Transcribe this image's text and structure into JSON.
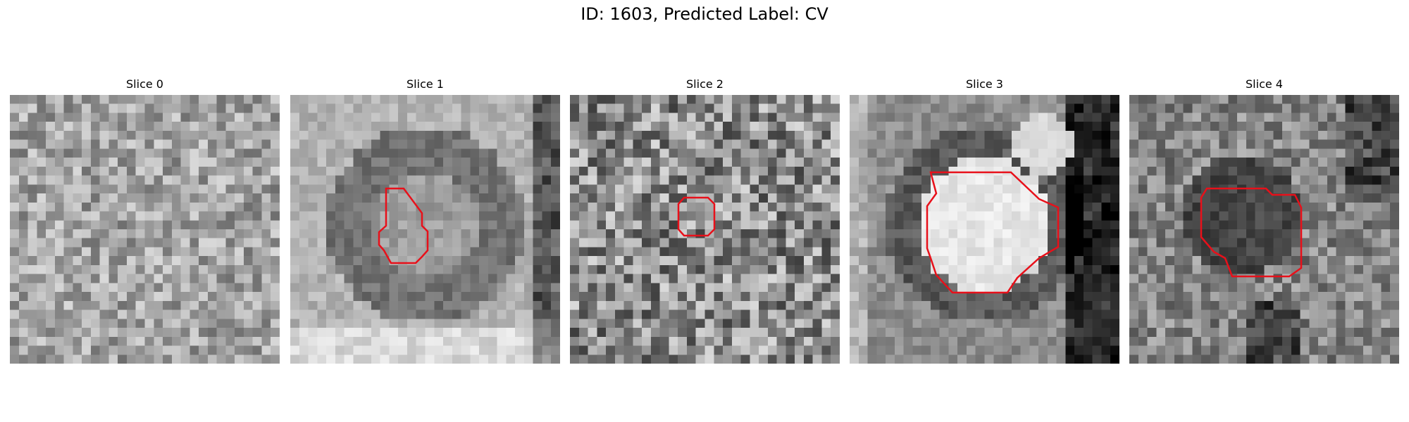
{
  "figure": {
    "title": "ID: 1603, Predicted Label: CV"
  },
  "outline_color": "#e8101a",
  "slices": [
    {
      "title": "Slice 0",
      "style": "noise",
      "mean": 0.64,
      "spread": 0.42,
      "seed": 11,
      "outline": false
    },
    {
      "title": "Slice 1",
      "style": "ring",
      "mean": 0.7,
      "spread": 0.18,
      "seed": 23,
      "outline": true
    },
    {
      "title": "Slice 2",
      "style": "noise",
      "mean": 0.55,
      "spread": 0.62,
      "seed": 37,
      "outline": true
    },
    {
      "title": "Slice 3",
      "style": "bright-blob",
      "mean": 0.55,
      "spread": 0.2,
      "seed": 41,
      "outline": true
    },
    {
      "title": "Slice 4",
      "style": "dark-blob",
      "mean": 0.52,
      "spread": 0.4,
      "seed": 53,
      "outline": true
    }
  ]
}
